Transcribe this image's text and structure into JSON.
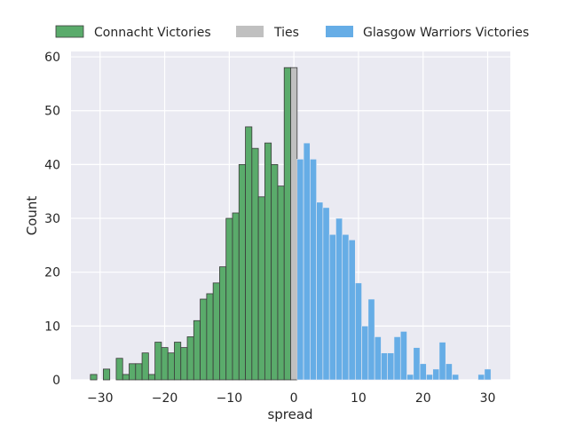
{
  "chart_data": {
    "type": "bar",
    "title": "",
    "xlabel": "spread",
    "ylabel": "Count",
    "xlim": [
      -34.5,
      33.5
    ],
    "ylim": [
      0,
      61
    ],
    "xticks": [
      -30,
      -20,
      -10,
      0,
      10,
      20,
      30
    ],
    "yticks": [
      0,
      10,
      20,
      30,
      40,
      50,
      60
    ],
    "xtick_labels": [
      "−30",
      "−20",
      "−10",
      "0",
      "10",
      "20",
      "30"
    ],
    "ytick_labels": [
      "0",
      "10",
      "20",
      "30",
      "40",
      "50",
      "60"
    ],
    "grid": true,
    "legend_position": "top-center",
    "series": [
      {
        "name": "Connacht Victories",
        "color": "#5aab6b",
        "edge_color": "#3b3b3b",
        "x": [
          -31,
          -29,
          -27,
          -26,
          -25,
          -24,
          -23,
          -22,
          -21,
          -20,
          -19,
          -18,
          -17,
          -16,
          -15,
          -14,
          -13,
          -12,
          -11,
          -10,
          -9,
          -8,
          -7,
          -6,
          -5,
          -4,
          -3,
          -2,
          -1
        ],
        "values": [
          1,
          2,
          4,
          1,
          3,
          3,
          5,
          1,
          7,
          6,
          5,
          7,
          6,
          8,
          11,
          15,
          16,
          18,
          21,
          30,
          31,
          40,
          47,
          43,
          34,
          44,
          40,
          36,
          58
        ]
      },
      {
        "name": "Ties",
        "color": "#c0c0c0",
        "edge_color": "#3b3b3b",
        "x": [
          0
        ],
        "values": [
          58
        ]
      },
      {
        "name": "Glasgow Warriors Victories",
        "color": "#66ade6",
        "edge_color": "none",
        "x": [
          1,
          2,
          3,
          4,
          5,
          6,
          7,
          8,
          9,
          10,
          11,
          12,
          13,
          14,
          15,
          16,
          17,
          18,
          19,
          20,
          21,
          22,
          23,
          24,
          25,
          29,
          30
        ],
        "values": [
          41,
          44,
          41,
          33,
          32,
          27,
          30,
          27,
          26,
          18,
          10,
          15,
          8,
          5,
          5,
          8,
          9,
          1,
          6,
          3,
          1,
          2,
          7,
          3,
          1,
          1,
          2
        ]
      }
    ]
  }
}
